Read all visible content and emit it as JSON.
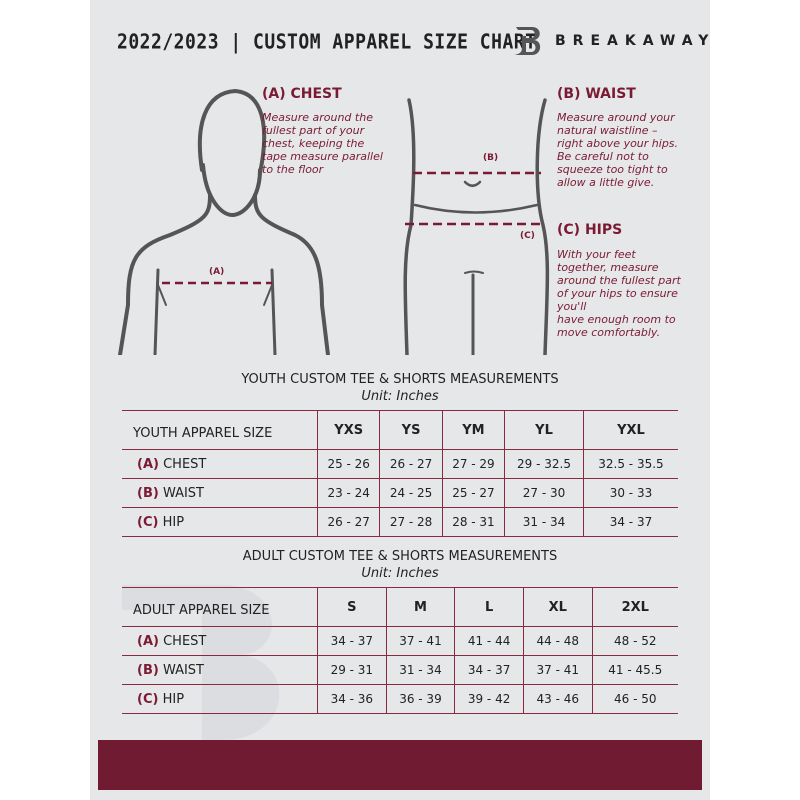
{
  "header": {
    "title": "2022/2023  |  CUSTOM APPAREL SIZE CHART",
    "brand": "BREAKAWAY",
    "logo_letter": "B"
  },
  "guide": {
    "chest": {
      "heading": "(A) CHEST",
      "marker": "(A)",
      "lines": [
        "Measure around the",
        "fullest part of your",
        "chest, keeping the",
        "tape measure parallel",
        "to the floor"
      ]
    },
    "waist": {
      "heading": "(B) WAIST",
      "marker": "(B)",
      "lines": [
        "Measure around your",
        "natural waistline –",
        "right above your hips.",
        "Be careful not to",
        "squeeze too tight to",
        "allow a little give."
      ]
    },
    "hips": {
      "heading": "(C) HIPS",
      "marker": "(C)",
      "lines": [
        "With your feet",
        "together, measure",
        "around the fullest part",
        "of your hips to ensure",
        "you'll",
        "have enough room to",
        "move comfortably."
      ]
    }
  },
  "youth": {
    "title": "YOUTH CUSTOM TEE & SHORTS MEASUREMENTS",
    "unit": "Unit: Inches",
    "header": [
      "YOUTH APPAREL SIZE",
      "YXS",
      "YS",
      "YM",
      "YL",
      "YXL"
    ],
    "rows": [
      {
        "code": "(A)",
        "name": "CHEST",
        "values": [
          "25 - 26",
          "26 - 27",
          "27 - 29",
          "29 - 32.5",
          "32.5 - 35.5"
        ]
      },
      {
        "code": "(B)",
        "name": "WAIST",
        "values": [
          "23 - 24",
          "24 - 25",
          "25 - 27",
          "27 - 30",
          "30 - 33"
        ]
      },
      {
        "code": "(C)",
        "name": "HIP",
        "values": [
          "26 - 27",
          "27 - 28",
          "28 - 31",
          "31 - 34",
          "34 - 37"
        ]
      }
    ]
  },
  "adult": {
    "title": "ADULT CUSTOM TEE & SHORTS MEASUREMENTS",
    "unit": "Unit: Inches",
    "header": [
      "ADULT APPAREL SIZE",
      "S",
      "M",
      "L",
      "XL",
      "2XL"
    ],
    "rows": [
      {
        "code": "(A)",
        "name": "CHEST",
        "values": [
          "34 - 37",
          "37 - 41",
          "41 - 44",
          "44 - 48",
          "48 - 52"
        ]
      },
      {
        "code": "(B)",
        "name": "WAIST",
        "values": [
          "29 - 31",
          "31 - 34",
          "34 - 37",
          "37 - 41",
          "41 - 45.5"
        ]
      },
      {
        "code": "(C)",
        "name": "HIP",
        "values": [
          "34 - 36",
          "36 - 39",
          "39 - 42",
          "43 - 46",
          "46 - 50"
        ]
      }
    ]
  },
  "colors": {
    "accent": "#7a1b33",
    "footer": "#711b32",
    "background": "#e6e7e9"
  }
}
